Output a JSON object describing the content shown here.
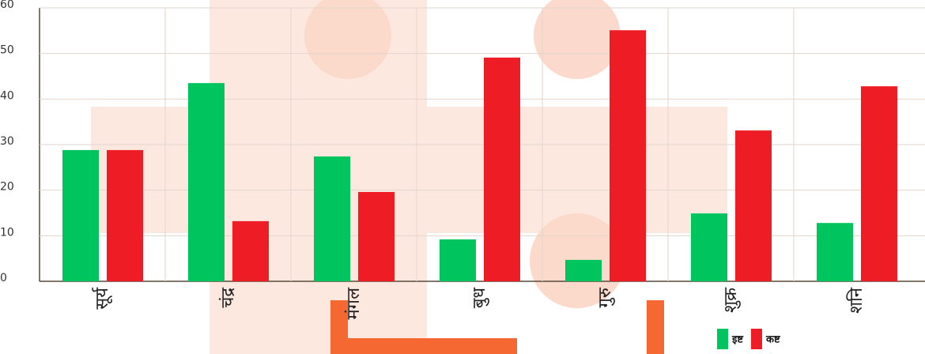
{
  "chart_data": {
    "type": "bar",
    "categories": [
      "सूर्य",
      "चंद्र",
      "मंगल",
      "बुध",
      "गुरु",
      "शुक्र",
      "शनि"
    ],
    "series": [
      {
        "name": "इष्ट",
        "color": "#00c55f",
        "values": [
          28.8,
          43.5,
          27.4,
          9.2,
          4.7,
          14.9,
          12.8
        ]
      },
      {
        "name": "कष्ट",
        "color": "#ee1c24",
        "values": [
          28.8,
          13.2,
          19.6,
          49.1,
          55.1,
          33.1,
          42.8
        ]
      }
    ],
    "ylim": [
      0,
      60
    ],
    "yticks": [
      0,
      10,
      20,
      30,
      40,
      50,
      60
    ],
    "grid": true
  }
}
